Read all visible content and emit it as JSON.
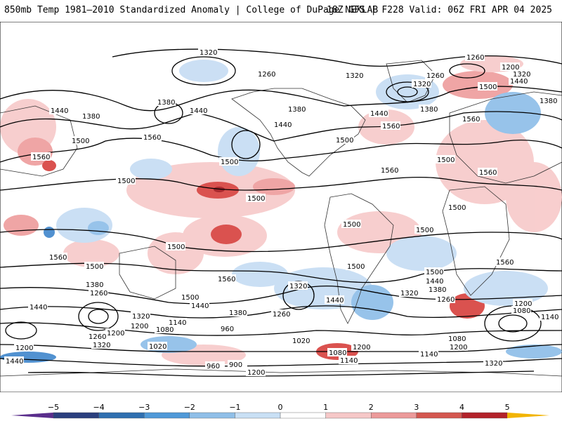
{
  "header": {
    "title": "850mb Temp 1981–2010 Standardized Anomaly | College of DuPage NEXLAB",
    "run": "18Z GFS | F228 Valid: 06Z FRI APR 04 2025"
  },
  "contour_labels": [
    "1320",
    "1260",
    "1200",
    "1440",
    "1380",
    "1560",
    "1500",
    "1080",
    "1140",
    "1020",
    "960",
    "900"
  ],
  "colorbar": {
    "ticks": [
      "−5",
      "−4",
      "−3",
      "−2",
      "−1",
      "0",
      "1",
      "2",
      "3",
      "4",
      "5"
    ],
    "colors": [
      "#5a2e8c",
      "#2b3f7e",
      "#2f6fb0",
      "#4f99d8",
      "#8fbfe8",
      "#c9e0f5",
      "#ffffff",
      "#f6c8c8",
      "#ec9a9a",
      "#d4564f",
      "#b3222a",
      "#8a0f16",
      "#f2b400"
    ]
  },
  "anomaly_colors": {
    "warm_light": "#f7c9c9",
    "warm_mid": "#ee9c9c",
    "warm_strong": "#d6403d",
    "warm_extreme": "#9e1218",
    "cool_light": "#c5dcf3",
    "cool_mid": "#8cbde8",
    "cool_strong": "#3f86cc"
  }
}
